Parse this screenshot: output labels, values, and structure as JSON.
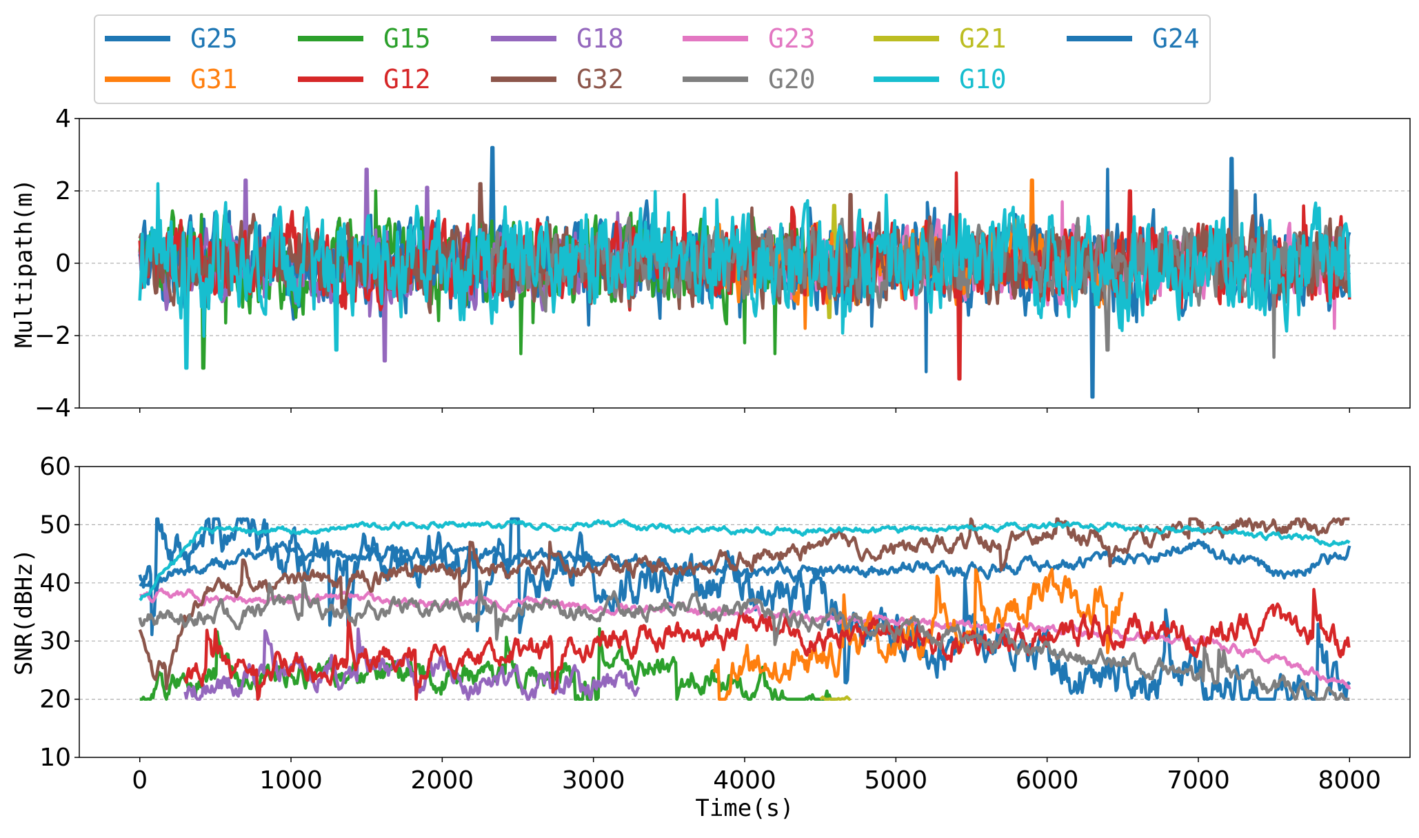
{
  "chart_data": [
    {
      "type": "line",
      "panel": "top",
      "ylabel": "Multipath(m)",
      "xlabel": "",
      "xlim": [
        -400,
        8400
      ],
      "ylim": [
        -4,
        4
      ],
      "yticks": [
        -4,
        -2,
        0,
        2,
        4
      ],
      "ytick_labels": [
        "−4",
        "−2",
        "0",
        "2",
        "4"
      ],
      "grid": "horizontal-dashed",
      "series": [
        {
          "name": "G25",
          "color": "#1f77b4",
          "x": [
            0,
            8000
          ],
          "amplitude": 1.2,
          "peaks": [
            [
              2330,
              3.2
            ],
            [
              6300,
              -3.7
            ],
            [
              5200,
              -3.0
            ],
            [
              7220,
              2.9
            ],
            [
              6400,
              2.6
            ]
          ]
        },
        {
          "name": "G15",
          "color": "#2ca02c",
          "x": [
            0,
            4600
          ],
          "amplitude": 1.1,
          "peaks": [
            [
              420,
              -2.9
            ],
            [
              1560,
              2.0
            ],
            [
              2520,
              -2.5
            ],
            [
              4200,
              -2.5
            ],
            [
              4000,
              -2.2
            ]
          ]
        },
        {
          "name": "G18",
          "color": "#9467bd",
          "x": [
            0,
            3300
          ],
          "amplitude": 1.0,
          "peaks": [
            [
              1500,
              2.6
            ],
            [
              1620,
              -2.7
            ],
            [
              1900,
              2.1
            ],
            [
              700,
              2.3
            ]
          ]
        },
        {
          "name": "G23",
          "color": "#e377c2",
          "x": [
            3900,
            8000
          ],
          "amplitude": 0.9,
          "peaks": [
            [
              7900,
              -1.8
            ],
            [
              6100,
              1.7
            ]
          ]
        },
        {
          "name": "G21",
          "color": "#bcbd22",
          "x": [
            4500,
            4700
          ],
          "amplitude": 0.8,
          "peaks": [
            [
              4590,
              1.6
            ],
            [
              4560,
              -1.5
            ]
          ]
        },
        {
          "name": "G24",
          "color": "#1f77b4",
          "x": [
            0,
            8000
          ],
          "amplitude": 0.5,
          "peaks": []
        },
        {
          "name": "G31",
          "color": "#ff7f0e",
          "x": [
            3800,
            6500
          ],
          "amplitude": 1.0,
          "peaks": [
            [
              5900,
              2.3
            ],
            [
              4400,
              -1.8
            ]
          ]
        },
        {
          "name": "G12",
          "color": "#d62728",
          "x": [
            0,
            8000
          ],
          "amplitude": 1.0,
          "peaks": [
            [
              5400,
              2.5
            ],
            [
              5420,
              -3.2
            ],
            [
              3600,
              1.9
            ],
            [
              6550,
              2.0
            ]
          ]
        },
        {
          "name": "G32",
          "color": "#8c564b",
          "x": [
            0,
            8000
          ],
          "amplitude": 1.0,
          "peaks": [
            [
              2250,
              2.2
            ],
            [
              4700,
              1.9
            ]
          ]
        },
        {
          "name": "G20",
          "color": "#7f7f7f",
          "x": [
            2300,
            8000
          ],
          "amplitude": 0.9,
          "peaks": [
            [
              7500,
              -2.6
            ],
            [
              7250,
              2.0
            ],
            [
              6400,
              -2.4
            ]
          ]
        },
        {
          "name": "G10",
          "color": "#17becf",
          "x": [
            0,
            8000
          ],
          "amplitude": 1.3,
          "peaks": [
            [
              310,
              -2.9
            ],
            [
              120,
              2.2
            ],
            [
              1300,
              -2.4
            ]
          ]
        }
      ]
    },
    {
      "type": "line",
      "panel": "bottom",
      "ylabel": "SNR(dBHz)",
      "xlabel": "Time(s)",
      "xlim": [
        -400,
        8400
      ],
      "ylim": [
        10,
        60
      ],
      "yticks": [
        10,
        20,
        30,
        40,
        50,
        60
      ],
      "ytick_labels": [
        "10",
        "20",
        "30",
        "40",
        "50",
        "60"
      ],
      "xticks": [
        0,
        1000,
        2000,
        3000,
        4000,
        5000,
        6000,
        7000,
        8000
      ],
      "xtick_labels": [
        "0",
        "1000",
        "2000",
        "3000",
        "4000",
        "5000",
        "6000",
        "7000",
        "8000"
      ],
      "grid": "horizontal-dashed",
      "series": [
        {
          "name": "G25",
          "color": "#1f77b4",
          "x": [
            0,
            8000
          ],
          "levels": [
            [
              0,
              43
            ],
            [
              400,
              46
            ],
            [
              1500,
              45
            ],
            [
              2500,
              44
            ],
            [
              3500,
              40
            ],
            [
              4500,
              38
            ],
            [
              5000,
              30
            ],
            [
              6000,
              26
            ],
            [
              7000,
              22
            ],
            [
              8000,
              20
            ]
          ],
          "noise": 5
        },
        {
          "name": "G15",
          "color": "#2ca02c",
          "x": [
            0,
            4600
          ],
          "levels": [
            [
              0,
              20
            ],
            [
              400,
              24
            ],
            [
              1500,
              25
            ],
            [
              2500,
              23
            ],
            [
              3500,
              26
            ],
            [
              4000,
              22
            ],
            [
              4600,
              20
            ]
          ],
          "noise": 3
        },
        {
          "name": "G18",
          "color": "#9467bd",
          "x": [
            300,
            3300
          ],
          "levels": [
            [
              300,
              22
            ],
            [
              1000,
              25
            ],
            [
              2000,
              24
            ],
            [
              3000,
              22
            ],
            [
              3300,
              20
            ]
          ],
          "noise": 3
        },
        {
          "name": "G23",
          "color": "#e377c2",
          "x": [
            0,
            8000
          ],
          "levels": [
            [
              0,
              38
            ],
            [
              1500,
              37
            ],
            [
              3000,
              36
            ],
            [
              4500,
              34
            ],
            [
              6000,
              32
            ],
            [
              7000,
              30
            ],
            [
              7400,
              28
            ],
            [
              8000,
              22
            ]
          ],
          "noise": 1
        },
        {
          "name": "G21",
          "color": "#bcbd22",
          "x": [
            4500,
            4700
          ],
          "levels": [
            [
              4500,
              20
            ],
            [
              4700,
              20
            ]
          ],
          "noise": 0.5
        },
        {
          "name": "G24",
          "color": "#1f77b4",
          "x": [
            0,
            8000
          ],
          "levels": [
            [
              0,
              40
            ],
            [
              1000,
              46
            ],
            [
              2000,
              45
            ],
            [
              3000,
              44
            ],
            [
              4000,
              42
            ],
            [
              5000,
              42
            ],
            [
              6000,
              43
            ],
            [
              6500,
              44
            ],
            [
              7000,
              46
            ],
            [
              7600,
              41
            ],
            [
              8000,
              46
            ]
          ],
          "noise": 1.5
        },
        {
          "name": "G31",
          "color": "#ff7f0e",
          "x": [
            3800,
            6500
          ],
          "levels": [
            [
              3800,
              25
            ],
            [
              4500,
              27
            ],
            [
              5000,
              30
            ],
            [
              5700,
              33
            ],
            [
              6000,
              38
            ],
            [
              6500,
              38
            ]
          ],
          "noise": 4
        },
        {
          "name": "G12",
          "color": "#d62728",
          "x": [
            300,
            8000
          ],
          "levels": [
            [
              300,
              24
            ],
            [
              1500,
              27
            ],
            [
              2500,
              28
            ],
            [
              3500,
              31
            ],
            [
              4500,
              32
            ],
            [
              5500,
              30
            ],
            [
              6500,
              32
            ],
            [
              7000,
              31
            ],
            [
              7600,
              33
            ],
            [
              8000,
              29
            ]
          ],
          "noise": 3
        },
        {
          "name": "G32",
          "color": "#8c564b",
          "x": [
            0,
            8000
          ],
          "levels": [
            [
              0,
              32
            ],
            [
              100,
              23
            ],
            [
              200,
              28
            ],
            [
              400,
              38
            ],
            [
              1000,
              40
            ],
            [
              2000,
              42
            ],
            [
              3000,
              42
            ],
            [
              4000,
              44
            ],
            [
              4500,
              46
            ],
            [
              5500,
              47
            ],
            [
              6500,
              48
            ],
            [
              7000,
              49
            ],
            [
              8000,
              50
            ]
          ],
          "noise": 2
        },
        {
          "name": "G20",
          "color": "#7f7f7f",
          "x": [
            0,
            8000
          ],
          "levels": [
            [
              0,
              34
            ],
            [
              1000,
              35
            ],
            [
              2000,
              35
            ],
            [
              3000,
              36
            ],
            [
              4000,
              35
            ],
            [
              5000,
              32
            ],
            [
              6000,
              28
            ],
            [
              7000,
              24
            ],
            [
              8000,
              20
            ]
          ],
          "noise": 2
        },
        {
          "name": "G10",
          "color": "#17becf",
          "x": [
            0,
            8000
          ],
          "levels": [
            [
              0,
              37
            ],
            [
              200,
              43
            ],
            [
              400,
              49
            ],
            [
              1000,
              49
            ],
            [
              2000,
              50
            ],
            [
              3000,
              50
            ],
            [
              4000,
              49
            ],
            [
              5000,
              49
            ],
            [
              6000,
              50
            ],
            [
              7000,
              49
            ],
            [
              8000,
              47
            ]
          ],
          "noise": 0.7
        }
      ]
    }
  ],
  "legend": {
    "placement": "top",
    "rows": [
      [
        "G25",
        "G15",
        "G18",
        "G23",
        "G21",
        "G24"
      ],
      [
        "G31",
        "G12",
        "G32",
        "G20",
        "G10"
      ]
    ]
  }
}
